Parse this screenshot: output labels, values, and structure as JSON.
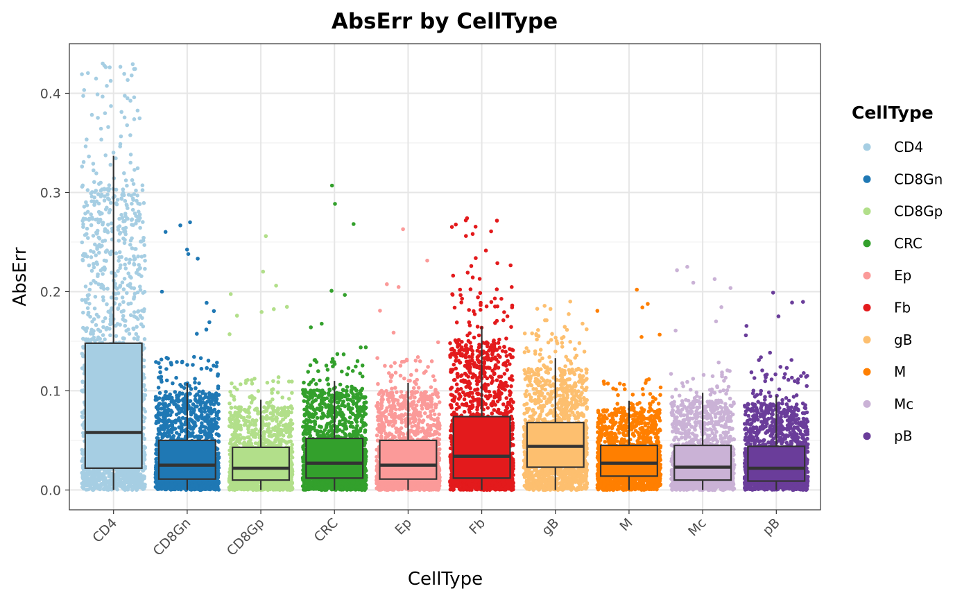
{
  "chart_data": {
    "type": "box",
    "title": "AbsErr by CellType",
    "xlabel": "CellType",
    "ylabel": "AbsErr",
    "ylim": [
      -0.02,
      0.45
    ],
    "yticks": [
      0.0,
      0.1,
      0.2,
      0.3,
      0.4
    ],
    "ytick_labels": [
      "0.0",
      "0.1",
      "0.2",
      "0.3",
      "0.4"
    ],
    "grid": true,
    "legend": {
      "title": "CellType",
      "position": "right"
    },
    "overlay": "jittered points",
    "series": [
      {
        "name": "CD4",
        "color": "#A6CEE3",
        "whisker_low": 0.0,
        "q1": 0.022,
        "median": 0.058,
        "q3": 0.148,
        "whisker_high": 0.337,
        "max_point": 0.43,
        "n_points": 1800
      },
      {
        "name": "CD8Gn",
        "color": "#1F78B4",
        "whisker_low": 0.0,
        "q1": 0.011,
        "median": 0.025,
        "q3": 0.05,
        "whisker_high": 0.108,
        "max_point": 0.27,
        "n_points": 1800
      },
      {
        "name": "CD8Gp",
        "color": "#B2DF8A",
        "whisker_low": 0.0,
        "q1": 0.01,
        "median": 0.022,
        "q3": 0.043,
        "whisker_high": 0.091,
        "max_point": 0.256,
        "n_points": 1700
      },
      {
        "name": "CRC",
        "color": "#33A02C",
        "whisker_low": 0.0,
        "q1": 0.012,
        "median": 0.027,
        "q3": 0.052,
        "whisker_high": 0.11,
        "max_point": 0.307,
        "n_points": 1800
      },
      {
        "name": "Ep",
        "color": "#FB9A99",
        "whisker_low": 0.0,
        "q1": 0.011,
        "median": 0.025,
        "q3": 0.05,
        "whisker_high": 0.108,
        "max_point": 0.263,
        "n_points": 1700
      },
      {
        "name": "Fb",
        "color": "#E31A1C",
        "whisker_low": 0.0,
        "q1": 0.012,
        "median": 0.034,
        "q3": 0.074,
        "whisker_high": 0.165,
        "max_point": 0.274,
        "n_points": 1900
      },
      {
        "name": "gB",
        "color": "#FDBF6F",
        "whisker_low": 0.0,
        "q1": 0.023,
        "median": 0.044,
        "q3": 0.068,
        "whisker_high": 0.133,
        "max_point": 0.19,
        "n_points": 1700
      },
      {
        "name": "M",
        "color": "#FF7F00",
        "whisker_low": 0.0,
        "q1": 0.014,
        "median": 0.027,
        "q3": 0.045,
        "whisker_high": 0.09,
        "max_point": 0.202,
        "n_points": 1700
      },
      {
        "name": "Mc",
        "color": "#CAB2D6",
        "whisker_low": 0.0,
        "q1": 0.01,
        "median": 0.023,
        "q3": 0.045,
        "whisker_high": 0.098,
        "max_point": 0.225,
        "n_points": 1600
      },
      {
        "name": "pB",
        "color": "#6A3D9A",
        "whisker_low": 0.0,
        "q1": 0.009,
        "median": 0.022,
        "q3": 0.044,
        "whisker_high": 0.095,
        "max_point": 0.199,
        "n_points": 1700
      }
    ]
  }
}
